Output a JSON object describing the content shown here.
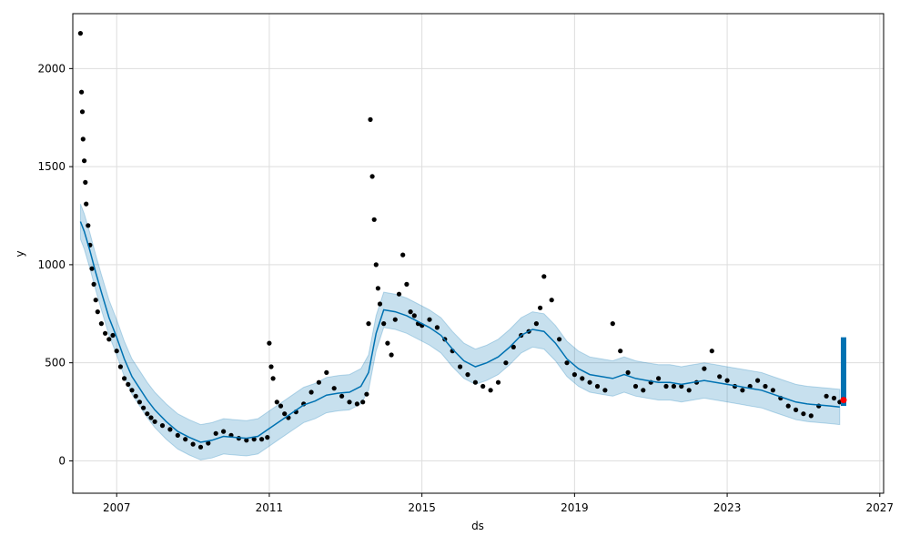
{
  "chart_data": {
    "type": "scatter",
    "title": "",
    "xlabel": "ds",
    "ylabel": "y",
    "xlim": [
      2005.85,
      2027.1
    ],
    "ylim": [
      -165,
      2280
    ],
    "grid": true,
    "x_ticks": [
      2007,
      2011,
      2015,
      2019,
      2023,
      2027
    ],
    "y_ticks": [
      0,
      500,
      1000,
      1500,
      2000
    ],
    "colors": {
      "points": "#000000",
      "forecast_line": "#0072b2",
      "uncertainty_band": "#0072b2",
      "highlight_point": "#ff0000",
      "grid": "#dddddd"
    },
    "series": [
      {
        "name": "",
        "role": "forecast",
        "x": [
          2006.05,
          2006.15,
          2006.3,
          2006.45,
          2006.6,
          2006.8,
          2007.0,
          2007.2,
          2007.4,
          2007.6,
          2007.8,
          2008.0,
          2008.3,
          2008.6,
          2008.9,
          2009.2,
          2009.5,
          2009.8,
          2010.1,
          2010.4,
          2010.7,
          2011.0,
          2011.3,
          2011.6,
          2011.9,
          2012.2,
          2012.5,
          2012.8,
          2013.1,
          2013.4,
          2013.6,
          2013.8,
          2014.0,
          2014.3,
          2014.6,
          2014.9,
          2015.2,
          2015.5,
          2015.8,
          2016.1,
          2016.4,
          2016.7,
          2017.0,
          2017.3,
          2017.6,
          2017.9,
          2018.2,
          2018.5,
          2018.8,
          2019.1,
          2019.4,
          2019.7,
          2020.0,
          2020.3,
          2020.6,
          2020.9,
          2021.2,
          2021.5,
          2021.8,
          2022.1,
          2022.4,
          2022.7,
          2023.0,
          2023.3,
          2023.6,
          2023.9,
          2024.2,
          2024.5,
          2024.8,
          2025.1,
          2025.4,
          2025.7,
          2025.95
        ],
        "y": [
          1220,
          1170,
          1070,
          960,
          860,
          730,
          630,
          520,
          430,
          370,
          310,
          260,
          200,
          150,
          120,
          95,
          105,
          125,
          120,
          115,
          125,
          165,
          205,
          245,
          285,
          305,
          335,
          345,
          350,
          380,
          450,
          650,
          770,
          760,
          740,
          710,
          680,
          640,
          570,
          510,
          480,
          500,
          530,
          580,
          640,
          670,
          660,
          600,
          520,
          470,
          440,
          430,
          420,
          440,
          420,
          410,
          400,
          400,
          390,
          400,
          410,
          400,
          390,
          380,
          370,
          360,
          340,
          320,
          300,
          290,
          285,
          280,
          275
        ],
        "band_half_width": 90
      },
      {
        "name": "",
        "role": "observed",
        "x": [
          2006.05,
          2006.08,
          2006.1,
          2006.12,
          2006.15,
          2006.18,
          2006.2,
          2006.25,
          2006.3,
          2006.35,
          2006.4,
          2006.45,
          2006.5,
          2006.6,
          2006.7,
          2006.8,
          2006.9,
          2007.0,
          2007.1,
          2007.2,
          2007.3,
          2007.4,
          2007.5,
          2007.6,
          2007.7,
          2007.8,
          2007.9,
          2008.0,
          2008.2,
          2008.4,
          2008.6,
          2008.8,
          2009.0,
          2009.2,
          2009.4,
          2009.6,
          2009.8,
          2010.0,
          2010.2,
          2010.4,
          2010.6,
          2010.8,
          2010.95,
          2011.0,
          2011.05,
          2011.1,
          2011.2,
          2011.3,
          2011.4,
          2011.5,
          2011.7,
          2011.9,
          2012.1,
          2012.3,
          2012.5,
          2012.7,
          2012.9,
          2013.1,
          2013.3,
          2013.45,
          2013.55,
          2013.6,
          2013.65,
          2013.7,
          2013.75,
          2013.8,
          2013.85,
          2013.9,
          2014.0,
          2014.1,
          2014.2,
          2014.3,
          2014.4,
          2014.5,
          2014.6,
          2014.7,
          2014.8,
          2014.9,
          2015.0,
          2015.2,
          2015.4,
          2015.6,
          2015.8,
          2016.0,
          2016.2,
          2016.4,
          2016.6,
          2016.8,
          2017.0,
          2017.2,
          2017.4,
          2017.6,
          2017.8,
          2018.0,
          2018.1,
          2018.2,
          2018.4,
          2018.6,
          2018.8,
          2019.0,
          2019.2,
          2019.4,
          2019.6,
          2019.8,
          2020.0,
          2020.2,
          2020.4,
          2020.6,
          2020.8,
          2021.0,
          2021.2,
          2021.4,
          2021.6,
          2021.8,
          2022.0,
          2022.2,
          2022.4,
          2022.6,
          2022.8,
          2023.0,
          2023.2,
          2023.4,
          2023.6,
          2023.8,
          2024.0,
          2024.2,
          2024.4,
          2024.6,
          2024.8,
          2025.0,
          2025.2,
          2025.4,
          2025.6,
          2025.8,
          2025.95
        ],
        "y": [
          2180,
          1880,
          1780,
          1640,
          1530,
          1420,
          1310,
          1200,
          1100,
          980,
          900,
          820,
          760,
          700,
          650,
          620,
          640,
          560,
          480,
          420,
          390,
          360,
          330,
          300,
          270,
          240,
          220,
          200,
          180,
          160,
          130,
          110,
          85,
          70,
          90,
          140,
          150,
          130,
          115,
          105,
          110,
          110,
          120,
          600,
          480,
          420,
          300,
          280,
          240,
          220,
          250,
          290,
          350,
          400,
          450,
          370,
          330,
          300,
          290,
          300,
          340,
          700,
          1740,
          1450,
          1230,
          1000,
          880,
          800,
          700,
          600,
          540,
          720,
          850,
          1050,
          900,
          760,
          740,
          700,
          690,
          720,
          680,
          620,
          560,
          480,
          440,
          400,
          380,
          360,
          400,
          500,
          580,
          640,
          660,
          700,
          780,
          940,
          820,
          620,
          500,
          440,
          420,
          400,
          380,
          360,
          700,
          560,
          450,
          380,
          360,
          400,
          420,
          380,
          380,
          380,
          360,
          400,
          470,
          560,
          430,
          410,
          380,
          360,
          380,
          410,
          380,
          360,
          320,
          280,
          260,
          240,
          230,
          280,
          330,
          320,
          300
        ]
      },
      {
        "name": "",
        "role": "future",
        "x": [
          2026.05
        ],
        "y": [
          310
        ],
        "vertical_range": [
          280,
          630
        ]
      }
    ]
  }
}
